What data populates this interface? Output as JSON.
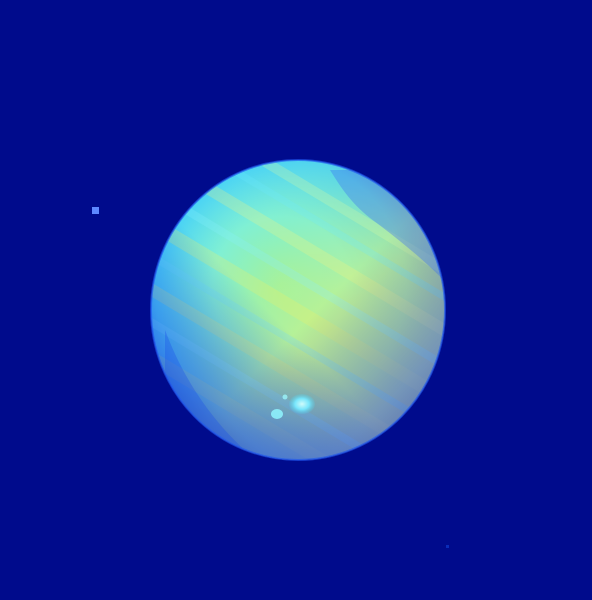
{
  "image": {
    "kind": "false-color astronomical image",
    "subject_icon": "planet-icon",
    "colors": {
      "background": "#000b8c",
      "rim_blue": "#1e4df0",
      "cyan": "#52d8ff",
      "aqua": "#6ff2df",
      "green": "#b8f27a",
      "yellow": "#f2f05b",
      "white_blue": "#c9fbff"
    }
  }
}
